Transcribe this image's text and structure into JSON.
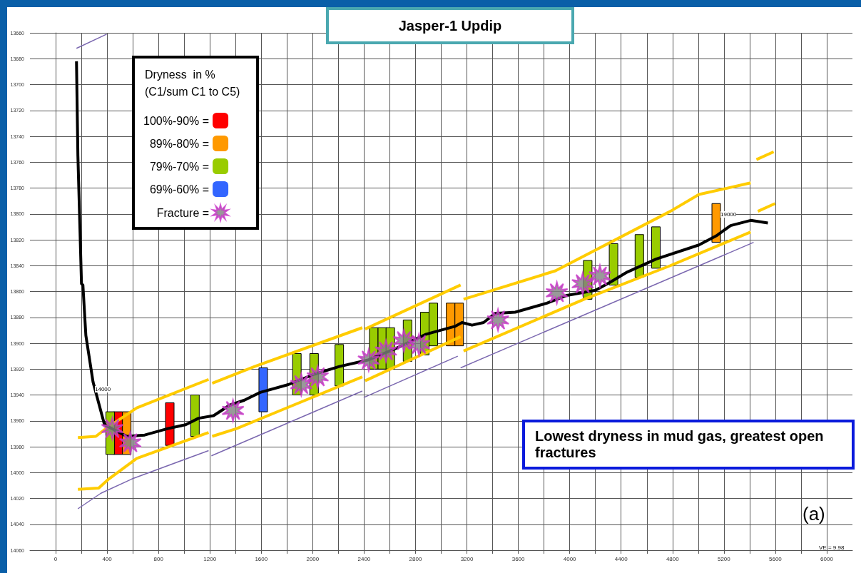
{
  "chart_data": {
    "type": "line",
    "title": "Jasper-1 Updip",
    "legend_title": "Dryness  in %\n(C1/sum C1 to C5)",
    "legend": "top left",
    "grid": true,
    "xlim": [
      -200,
      6200
    ],
    "xticks": [
      0,
      {
        "value": 200,
        "label": null
      },
      400,
      {
        "value": 600,
        "label": null
      },
      800,
      {
        "value": 1000,
        "label": null
      },
      1200,
      {
        "value": 1400,
        "label": null
      },
      1600,
      {
        "value": 1800,
        "label": null
      },
      2000,
      {
        "value": 2200,
        "label": null
      },
      2400,
      {
        "value": 2600,
        "label": null
      },
      2800,
      {
        "value": 3000,
        "label": null
      },
      3200,
      {
        "value": 3400,
        "label": null
      },
      3600,
      {
        "value": 3800,
        "label": null
      },
      4000,
      {
        "value": 4200,
        "label": null
      },
      4400,
      {
        "value": 4600,
        "label": null
      },
      4800,
      {
        "value": 5000,
        "label": null
      },
      5200,
      {
        "value": 5400,
        "label": null
      },
      5600,
      {
        "value": 5800,
        "label": null
      },
      6000
    ],
    "ylim": [
      14060,
      13660
    ],
    "yticks": [
      13660,
      13680,
      13700,
      13720,
      13740,
      13760,
      13780,
      13800,
      13820,
      13840,
      13860,
      13880,
      13900,
      13920,
      13940,
      13960,
      13980,
      14000,
      14020,
      14040,
      14060
    ],
    "annotations": [
      "Lowest dryness in mud gas, greatest open fractures",
      "(a)",
      "VE = 9.98",
      "14000",
      "19000"
    ],
    "series": [
      {
        "type": "line",
        "color": "#ffcc00",
        "marker": "none",
        "x": [
          173,
          313,
          391,
          631,
          1190,
          null,
          1218,
          1548,
          2386,
          null,
          2408,
          3151,
          null,
          3174,
          3889,
          4783,
          5006,
          5408
        ],
        "values": [
          13973,
          13972,
          13966,
          13950,
          13928,
          null,
          13931,
          13918,
          13888,
          null,
          13889,
          13855,
          null,
          13866,
          13844,
          13798,
          13785,
          13776
        ]
      },
      {
        "type": "line",
        "color": "#ffcc00",
        "marker": "none",
        "x": [
          173,
          335,
          413,
          631,
          1190,
          null,
          1218,
          1408,
          1749,
          2386,
          null,
          2408,
          3151,
          null,
          3174,
          4112,
          4783,
          5408
        ],
        "values": [
          14013,
          14012,
          14005,
          13989,
          13969,
          null,
          13972,
          13966,
          13952,
          13926,
          null,
          13929,
          13895,
          null,
          13906,
          13866,
          13840,
          13814
        ]
      },
      {
        "type": "line",
        "color": "#ffcc00",
        "marker": "none",
        "x": [
          5453,
          5587,
          null,
          5464,
          5598
        ],
        "values": [
          13758,
          13752,
          null,
          13798,
          13792
        ]
      },
      {
        "type": "line",
        "color": "#7b68b0",
        "marker": "none",
        "x": [
          173,
          352,
          592,
          1190,
          null,
          1212,
          2386,
          null,
          2397,
          3129,
          null,
          3151,
          5431,
          null,
          162,
          397
        ],
        "values": [
          14028,
          14016,
          14005,
          13983,
          null,
          13987,
          13937,
          null,
          13942,
          13910,
          null,
          13919,
          13822,
          null,
          13672,
          13661
        ]
      },
      {
        "color": "#000000",
        "marker": "none",
        "x": [
          162,
          173,
          201,
          212,
          235,
          291,
          380,
          553,
          693,
          872,
          1011,
          1112,
          1229,
          1352,
          1469,
          1592,
          1810,
          2011,
          2207,
          2430,
          2648,
          2883,
          3106,
          3162,
          3240,
          3330,
          3419,
          3576,
          3822,
          3978,
          4201,
          4313,
          4447,
          4671,
          5006,
          5140,
          5252,
          5408,
          5542
        ],
        "values": [
          13682,
          13755,
          13854,
          13855,
          13894,
          13930,
          13963,
          13972,
          13971,
          13966,
          13963,
          13958,
          13956,
          13948,
          13944,
          13938,
          13932,
          13924,
          13918,
          13913,
          13904,
          13893,
          13887,
          13884,
          13886,
          13884,
          13877,
          13876,
          13869,
          13863,
          13859,
          13853,
          13845,
          13835,
          13824,
          13817,
          13809,
          13805,
          13807
        ]
      },
      {
        "type": "bar",
        "name": "100%-90% =",
        "color": "#ff0000",
        "x": [
          486,
          888
        ],
        "base": [
          13953,
          13946
        ],
        "values": [
          33,
          33
        ]
      },
      {
        "type": "bar",
        "name": "89%-80% =",
        "color": "#ff9900",
        "x": [
          553,
          3073,
          3140,
          5140
        ],
        "base": [
          13953,
          13869,
          13869,
          13792
        ],
        "values": [
          33,
          33,
          33,
          30
        ]
      },
      {
        "type": "bar",
        "name": "79%-70% =",
        "color": "#99cc00",
        "x": [
          424,
          1084,
          1877,
          2011,
          2207,
          2475,
          2542,
          2604,
          2738,
          2872,
          2939,
          4140,
          4341,
          4542,
          4671
        ],
        "base": [
          13953,
          13940,
          13908,
          13908,
          13901,
          13888,
          13888,
          13888,
          13882,
          13876,
          13869,
          13836,
          13823,
          13816,
          13810
        ],
        "values": [
          33,
          32,
          32,
          32,
          32,
          32,
          32,
          32,
          32,
          33,
          33,
          30,
          32,
          33,
          32
        ]
      },
      {
        "type": "bar",
        "name": "69%-60% =",
        "color": "#3366ff",
        "x": [
          1615
        ],
        "base": [
          13919
        ],
        "values": [
          34
        ]
      },
      {
        "type": "scatter",
        "name": "Fracture =",
        "color": "#808080",
        "marker": "star",
        "x": [
          441,
          581,
          1380,
          1911,
          2039,
          2436,
          2570,
          2710,
          2827,
          3442,
          3900,
          4101,
          4235
        ],
        "values": [
          13966,
          13977,
          13952,
          13932,
          13926,
          13913,
          13906,
          13898,
          13901,
          13882,
          13861,
          13854,
          13848
        ]
      }
    ]
  }
}
